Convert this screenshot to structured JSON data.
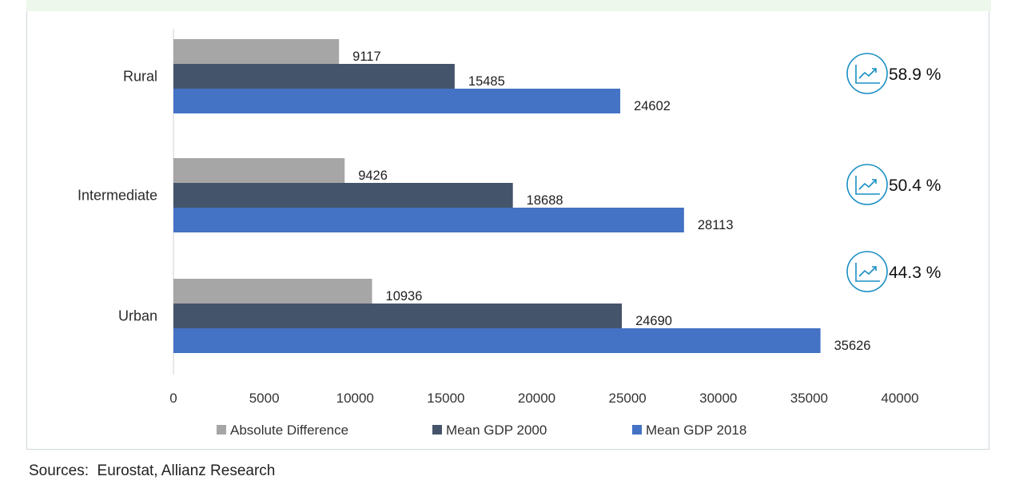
{
  "chart_data": {
    "type": "bar",
    "orientation": "horizontal",
    "categories": [
      "Rural",
      "Intermediate",
      "Urban"
    ],
    "series": [
      {
        "name": "Absolute Difference",
        "color": "#a6a6a6",
        "values": [
          9117,
          9426,
          10936
        ]
      },
      {
        "name": "Mean GDP 2000",
        "color": "#44546a",
        "values": [
          15485,
          18688,
          24690
        ]
      },
      {
        "name": "Mean GDP 2018",
        "color": "#4472c4",
        "values": [
          24602,
          28113,
          35626
        ]
      }
    ],
    "xlim": [
      0,
      40000
    ],
    "x_ticks": [
      "0",
      "5000",
      "10000",
      "15000",
      "20000",
      "25000",
      "30000",
      "35000",
      "40000"
    ],
    "growth": [
      {
        "category": "Rural",
        "label": "58.9 %",
        "icon": "trend-up-icon"
      },
      {
        "category": "Intermediate",
        "label": "50.4 %",
        "icon": "trend-up-icon"
      },
      {
        "category": "Urban",
        "label": "44.3 %",
        "icon": "trend-up-icon"
      }
    ],
    "legend_position": "bottom",
    "grid": false,
    "accent_color": "#1a8fc4"
  },
  "source": "Sources:  Eurostat, Allianz Research"
}
